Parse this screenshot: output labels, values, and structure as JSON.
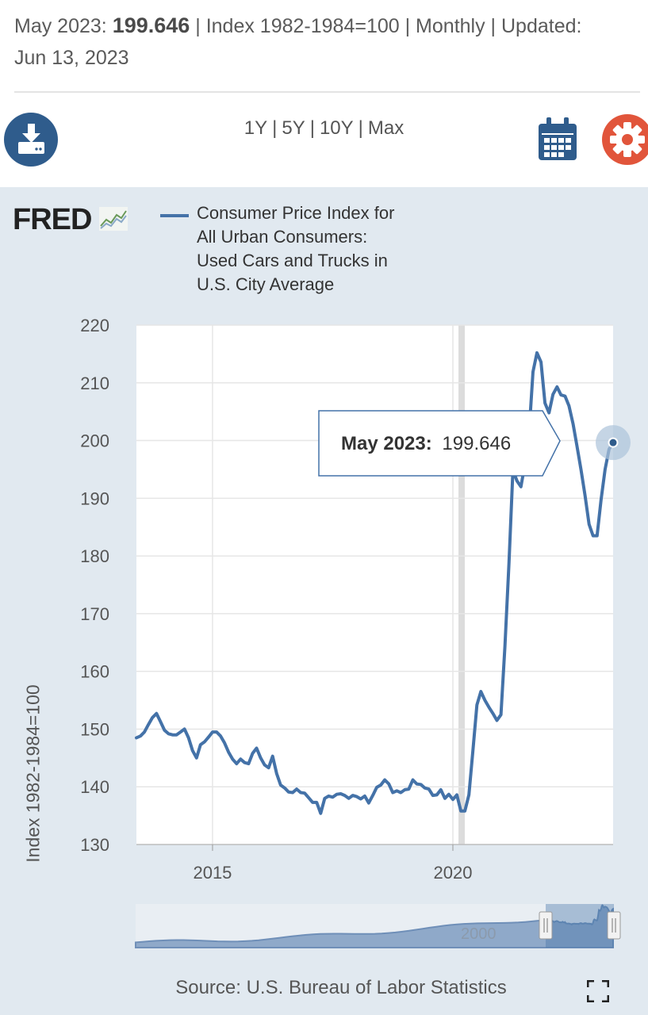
{
  "header": {
    "period_label": "May 2023:",
    "value": "199.646",
    "meta": "| Index 1982-1984=100 | Monthly | Updated:",
    "updated": "Jun 13, 2023"
  },
  "toolbar": {
    "ranges": [
      "1Y",
      "5Y",
      "10Y",
      "Max"
    ],
    "icons": [
      "download-icon",
      "calendar-icon",
      "gear-icon"
    ],
    "colors": {
      "download": "#2f5c8c",
      "calendar": "#2f5c8c",
      "gear": "#e1553b"
    }
  },
  "brand": {
    "logo_text": "FRED"
  },
  "legend": {
    "series_name": "Consumer Price Index for All Urban Consumers: Used Cars and Trucks in U.S. City Average",
    "lines": [
      "Consumer Price Index for",
      "All Urban Consumers:",
      "Used Cars and Trucks in",
      "U.S. City Average"
    ]
  },
  "tooltip": {
    "label": "May 2023:",
    "value": "199.646"
  },
  "minimap": {
    "label": "2000"
  },
  "source": "Source: U.S. Bureau of Labor Statistics",
  "chart_data": {
    "type": "line",
    "ylabel": "Index 1982-1984=100",
    "ylim": [
      130,
      220
    ],
    "yticks": [
      130,
      140,
      150,
      160,
      170,
      180,
      190,
      200,
      210,
      220
    ],
    "xlim": [
      "2013-06",
      "2023-05"
    ],
    "xticks": [
      {
        "label": "2015",
        "date": "2015-01"
      },
      {
        "label": "2020",
        "date": "2020-01"
      }
    ],
    "recession": {
      "start": "2020-02",
      "end": "2020-04"
    },
    "grid": true,
    "legend_position": "top",
    "color": "#4472a8",
    "series": [
      {
        "name": "Consumer Price Index for All Urban Consumers: Used Cars and Trucks in U.S. City Average",
        "points": [
          [
            "2013-06",
            148.5
          ],
          [
            "2013-07",
            148.8
          ],
          [
            "2013-08",
            149.5
          ],
          [
            "2013-09",
            150.8
          ],
          [
            "2013-10",
            152.0
          ],
          [
            "2013-11",
            152.7
          ],
          [
            "2013-12",
            151.3
          ],
          [
            "2014-01",
            149.8
          ],
          [
            "2014-02",
            149.2
          ],
          [
            "2014-03",
            149.0
          ],
          [
            "2014-04",
            149.0
          ],
          [
            "2014-05",
            149.5
          ],
          [
            "2014-06",
            150.0
          ],
          [
            "2014-07",
            148.5
          ],
          [
            "2014-08",
            146.3
          ],
          [
            "2014-09",
            145.0
          ],
          [
            "2014-10",
            147.3
          ],
          [
            "2014-11",
            147.8
          ],
          [
            "2014-12",
            148.6
          ],
          [
            "2015-01",
            149.5
          ],
          [
            "2015-02",
            149.5
          ],
          [
            "2015-03",
            148.8
          ],
          [
            "2015-04",
            147.6
          ],
          [
            "2015-05",
            146.0
          ],
          [
            "2015-06",
            144.8
          ],
          [
            "2015-07",
            144.0
          ],
          [
            "2015-08",
            144.8
          ],
          [
            "2015-09",
            144.2
          ],
          [
            "2015-10",
            144.0
          ],
          [
            "2015-11",
            145.8
          ],
          [
            "2015-12",
            146.7
          ],
          [
            "2016-01",
            145.0
          ],
          [
            "2016-02",
            143.8
          ],
          [
            "2016-03",
            143.3
          ],
          [
            "2016-04",
            145.3
          ],
          [
            "2016-05",
            142.3
          ],
          [
            "2016-06",
            140.3
          ],
          [
            "2016-07",
            139.8
          ],
          [
            "2016-08",
            139.1
          ],
          [
            "2016-09",
            139.0
          ],
          [
            "2016-10",
            139.6
          ],
          [
            "2016-11",
            139.0
          ],
          [
            "2016-12",
            138.9
          ],
          [
            "2017-01",
            138.1
          ],
          [
            "2017-02",
            137.3
          ],
          [
            "2017-03",
            137.3
          ],
          [
            "2017-04",
            135.4
          ],
          [
            "2017-05",
            138.0
          ],
          [
            "2017-06",
            138.4
          ],
          [
            "2017-07",
            138.2
          ],
          [
            "2017-08",
            138.7
          ],
          [
            "2017-09",
            138.8
          ],
          [
            "2017-10",
            138.5
          ],
          [
            "2017-11",
            138.0
          ],
          [
            "2017-12",
            138.5
          ],
          [
            "2018-01",
            138.3
          ],
          [
            "2018-02",
            137.9
          ],
          [
            "2018-03",
            138.4
          ],
          [
            "2018-04",
            137.2
          ],
          [
            "2018-05",
            138.5
          ],
          [
            "2018-06",
            139.9
          ],
          [
            "2018-07",
            140.3
          ],
          [
            "2018-08",
            141.2
          ],
          [
            "2018-09",
            140.5
          ],
          [
            "2018-10",
            139.0
          ],
          [
            "2018-11",
            139.3
          ],
          [
            "2018-12",
            139.0
          ],
          [
            "2019-01",
            139.5
          ],
          [
            "2019-02",
            139.6
          ],
          [
            "2019-03",
            141.2
          ],
          [
            "2019-04",
            140.5
          ],
          [
            "2019-05",
            140.4
          ],
          [
            "2019-06",
            139.8
          ],
          [
            "2019-07",
            139.6
          ],
          [
            "2019-08",
            138.5
          ],
          [
            "2019-09",
            138.6
          ],
          [
            "2019-10",
            139.5
          ],
          [
            "2019-11",
            138.0
          ],
          [
            "2019-12",
            138.7
          ],
          [
            "2020-01",
            137.8
          ],
          [
            "2020-02",
            138.6
          ],
          [
            "2020-03",
            135.8
          ],
          [
            "2020-04",
            135.8
          ],
          [
            "2020-05",
            138.6
          ],
          [
            "2020-06",
            146.2
          ],
          [
            "2020-07",
            154.2
          ],
          [
            "2020-08",
            156.5
          ],
          [
            "2020-09",
            155.0
          ],
          [
            "2020-10",
            153.8
          ],
          [
            "2020-11",
            152.7
          ],
          [
            "2020-12",
            151.5
          ],
          [
            "2021-01",
            152.5
          ],
          [
            "2021-02",
            164.3
          ],
          [
            "2021-03",
            178.7
          ],
          [
            "2021-04",
            194.9
          ],
          [
            "2021-05",
            193.0
          ],
          [
            "2021-06",
            192.0
          ],
          [
            "2021-07",
            196.0
          ],
          [
            "2021-08",
            201.0
          ],
          [
            "2021-09",
            211.9
          ],
          [
            "2021-10",
            215.2
          ],
          [
            "2021-11",
            213.6
          ],
          [
            "2021-12",
            206.5
          ],
          [
            "2022-01",
            204.8
          ],
          [
            "2022-02",
            208.0
          ],
          [
            "2022-03",
            209.3
          ],
          [
            "2022-04",
            207.9
          ],
          [
            "2022-05",
            207.7
          ],
          [
            "2022-06",
            206.0
          ],
          [
            "2022-07",
            202.9
          ],
          [
            "2022-08",
            199.0
          ],
          [
            "2022-09",
            194.9
          ],
          [
            "2022-10",
            190.5
          ],
          [
            "2022-11",
            185.5
          ],
          [
            "2022-12",
            183.5
          ],
          [
            "2023-01",
            183.5
          ],
          [
            "2023-02",
            189.7
          ],
          [
            "2023-03",
            195.0
          ],
          [
            "2023-04",
            198.5
          ],
          [
            "2023-05",
            199.646
          ]
        ]
      }
    ]
  }
}
